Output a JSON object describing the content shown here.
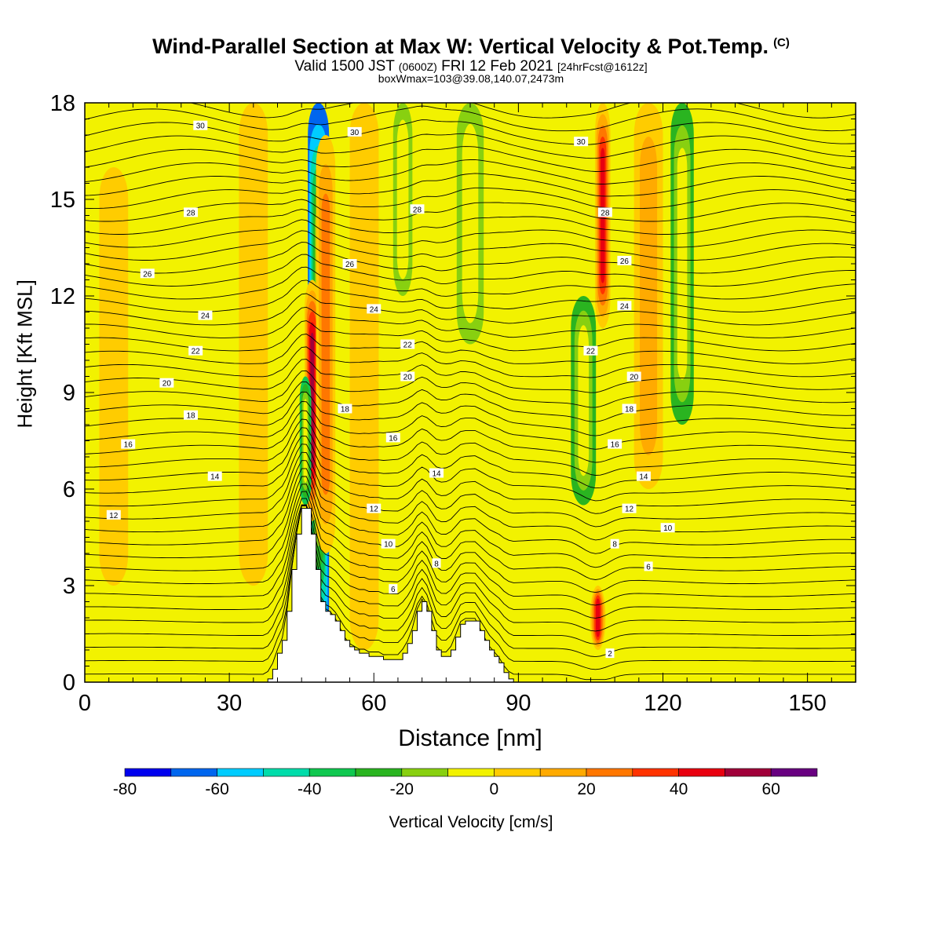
{
  "header": {
    "title": "Wind-Parallel Section at Max W: Vertical Velocity & Pot.Temp.",
    "copyright": "(C)",
    "valid_prefix": "Valid 1500 JST",
    "valid_utc": "(0600Z)",
    "valid_date": "FRI 12 Feb 2021",
    "forecast": "[24hrFcst@1612z]",
    "box_info": "boxWmax=103@39.08,140.07,2473m"
  },
  "chart_data": {
    "type": "heatmap",
    "xlabel": "Distance [nm]",
    "ylabel": "Height [Kft MSL]",
    "xlim": [
      0,
      160
    ],
    "ylim": [
      0,
      18
    ],
    "x_ticks": [
      "0",
      "30",
      "60",
      "90",
      "120",
      "150"
    ],
    "y_ticks": [
      "0",
      "3",
      "6",
      "9",
      "12",
      "15",
      "18"
    ],
    "colorbar": {
      "label": "Vertical Velocity [cm/s]",
      "tick_labels": [
        "-80",
        "-60",
        "-40",
        "-20",
        "0",
        "20",
        "40",
        "60"
      ],
      "bounds": [
        -80,
        -70,
        -60,
        -50,
        -40,
        -30,
        -20,
        -10,
        0,
        10,
        20,
        30,
        40,
        50,
        60,
        70
      ],
      "colors": [
        "#0000ee",
        "#0066ee",
        "#00ccff",
        "#00dcaa",
        "#10c850",
        "#2ab420",
        "#88d010",
        "#f2f200",
        "#ffcc00",
        "#ffaa00",
        "#ff7700",
        "#ff3300",
        "#e80010",
        "#a0003a",
        "#680080"
      ]
    },
    "background_color": "#f2f200",
    "terrain": {
      "x": [
        0,
        37,
        38,
        39,
        40,
        41,
        42,
        43,
        44,
        45,
        46,
        47,
        48,
        49,
        50,
        51,
        52,
        53,
        54,
        55,
        56,
        57,
        58,
        59,
        60,
        61,
        62,
        63,
        64,
        65,
        66,
        67,
        68,
        69,
        70,
        71,
        72,
        73,
        74,
        75,
        76,
        77,
        78,
        79,
        80,
        81,
        82,
        83,
        84,
        85,
        86,
        87,
        88,
        89,
        90,
        160
      ],
      "height_kft": [
        0,
        0,
        0.1,
        0.4,
        0.9,
        1.3,
        2.2,
        3.5,
        4.6,
        5.4,
        5.4,
        4.6,
        3.5,
        2.5,
        2.2,
        2.1,
        1.9,
        1.6,
        1.3,
        1.1,
        1.0,
        0.9,
        0.9,
        0.8,
        0.8,
        0.8,
        0.7,
        0.7,
        0.7,
        0.7,
        0.9,
        1.2,
        1.6,
        2.2,
        2.5,
        2.2,
        1.6,
        1.0,
        0.8,
        0.8,
        1.0,
        1.4,
        1.8,
        1.9,
        1.9,
        1.9,
        1.6,
        1.3,
        1.0,
        0.8,
        0.6,
        0.3,
        0.1,
        0.0,
        0.0,
        0.0
      ]
    },
    "velocity_features": [
      {
        "x": 48.5,
        "y0": 0.9,
        "y1": 18,
        "w": 2.2,
        "value": -70
      },
      {
        "x": 47.2,
        "y0": 5.0,
        "y1": 12.5,
        "w": 1.6,
        "value": 55
      },
      {
        "x": 50.0,
        "y0": 4.0,
        "y1": 17.0,
        "w": 2.0,
        "value": 25
      },
      {
        "x": 45.8,
        "y0": 5.5,
        "y1": 9.5,
        "w": 1.2,
        "value": -40
      },
      {
        "x": 106.5,
        "y0": 1.0,
        "y1": 3.0,
        "w": 1.6,
        "value": 45
      },
      {
        "x": 107.5,
        "y0": 11.0,
        "y1": 18,
        "w": 1.6,
        "value": 45
      },
      {
        "x": 103.5,
        "y0": 5.5,
        "y1": 12.0,
        "w": 2.6,
        "value": -25
      },
      {
        "x": 124.0,
        "y0": 8.0,
        "y1": 18,
        "w": 2.4,
        "value": -25
      },
      {
        "x": 80.0,
        "y0": 10.5,
        "y1": 18,
        "w": 2.8,
        "value": -15
      },
      {
        "x": 66.0,
        "y0": 12.0,
        "y1": 18,
        "w": 2.0,
        "value": -15
      },
      {
        "x": 117.0,
        "y0": 6.0,
        "y1": 18,
        "w": 3.0,
        "value": 15
      },
      {
        "x": 6.0,
        "y0": 3.0,
        "y1": 16.0,
        "w": 3.0,
        "value": 10
      },
      {
        "x": 35.0,
        "y0": 3.0,
        "y1": 18,
        "w": 3.0,
        "value": 10
      },
      {
        "x": 58.0,
        "y0": 1.0,
        "y1": 18,
        "w": 3.0,
        "value": 10
      }
    ],
    "contour_labels": [
      {
        "text": "30",
        "x": 24,
        "y": 17.3
      },
      {
        "text": "30",
        "x": 56,
        "y": 17.1
      },
      {
        "text": "30",
        "x": 103,
        "y": 16.8
      },
      {
        "text": "28",
        "x": 22,
        "y": 14.6
      },
      {
        "text": "28",
        "x": 69,
        "y": 14.7
      },
      {
        "text": "28",
        "x": 108,
        "y": 14.6
      },
      {
        "text": "26",
        "x": 13,
        "y": 12.7
      },
      {
        "text": "26",
        "x": 55,
        "y": 13.0
      },
      {
        "text": "26",
        "x": 112,
        "y": 13.1
      },
      {
        "text": "24",
        "x": 25,
        "y": 11.4
      },
      {
        "text": "24",
        "x": 60,
        "y": 11.6
      },
      {
        "text": "24",
        "x": 112,
        "y": 11.7
      },
      {
        "text": "22",
        "x": 23,
        "y": 10.3
      },
      {
        "text": "22",
        "x": 67,
        "y": 10.5
      },
      {
        "text": "22",
        "x": 105,
        "y": 10.3
      },
      {
        "text": "20",
        "x": 17,
        "y": 9.3
      },
      {
        "text": "20",
        "x": 67,
        "y": 9.5
      },
      {
        "text": "20",
        "x": 114,
        "y": 9.5
      },
      {
        "text": "18",
        "x": 22,
        "y": 8.3
      },
      {
        "text": "18",
        "x": 54,
        "y": 8.5
      },
      {
        "text": "18",
        "x": 113,
        "y": 8.5
      },
      {
        "text": "16",
        "x": 9,
        "y": 7.4
      },
      {
        "text": "16",
        "x": 64,
        "y": 7.6
      },
      {
        "text": "16",
        "x": 110,
        "y": 7.4
      },
      {
        "text": "14",
        "x": 27,
        "y": 6.4
      },
      {
        "text": "14",
        "x": 73,
        "y": 6.5
      },
      {
        "text": "14",
        "x": 116,
        "y": 6.4
      },
      {
        "text": "12",
        "x": 6,
        "y": 5.2
      },
      {
        "text": "12",
        "x": 60,
        "y": 5.4
      },
      {
        "text": "12",
        "x": 113,
        "y": 5.4
      },
      {
        "text": "10",
        "x": 63,
        "y": 4.3
      },
      {
        "text": "10",
        "x": 121,
        "y": 4.8
      },
      {
        "text": "8",
        "x": 73,
        "y": 3.7
      },
      {
        "text": "8",
        "x": 110,
        "y": 4.3
      },
      {
        "text": "6",
        "x": 64,
        "y": 2.9
      },
      {
        "text": "6",
        "x": 117,
        "y": 3.6
      },
      {
        "text": "2",
        "x": 109,
        "y": 0.9
      }
    ]
  }
}
